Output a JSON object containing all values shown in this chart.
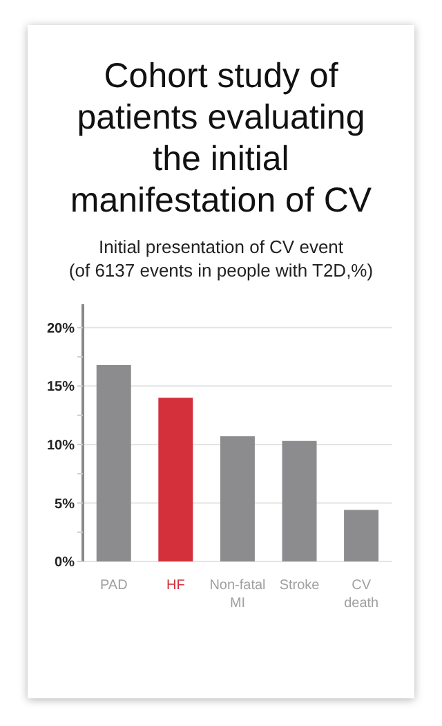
{
  "chart_data": {
    "type": "bar",
    "title": "Cohort study of patients evaluating the initial manifestation of CV",
    "subtitle": "Initial presentation of CV event\n(of 6137 events in people with T2D,%)",
    "categories": [
      "PAD",
      "HF",
      "Non-fatal MI",
      "Stroke",
      "CV death"
    ],
    "values": [
      16.8,
      14.0,
      10.7,
      10.3,
      4.4
    ],
    "colors": [
      "#8c8c8e",
      "#d4303c",
      "#8c8c8e",
      "#8c8c8e",
      "#8c8c8e"
    ],
    "ylim": [
      0,
      22
    ],
    "yticks": [
      {
        "value": 0,
        "label": "0%"
      },
      {
        "value": 2.5,
        "label": null
      },
      {
        "value": 5,
        "label": "5%"
      },
      {
        "value": 7.5,
        "label": null
      },
      {
        "value": 10,
        "label": "10%"
      },
      {
        "value": 12.5,
        "label": null
      },
      {
        "value": 15,
        "label": "15%"
      },
      {
        "value": 17.5,
        "label": null
      },
      {
        "value": 20,
        "label": "20%"
      }
    ],
    "grid": "y"
  }
}
